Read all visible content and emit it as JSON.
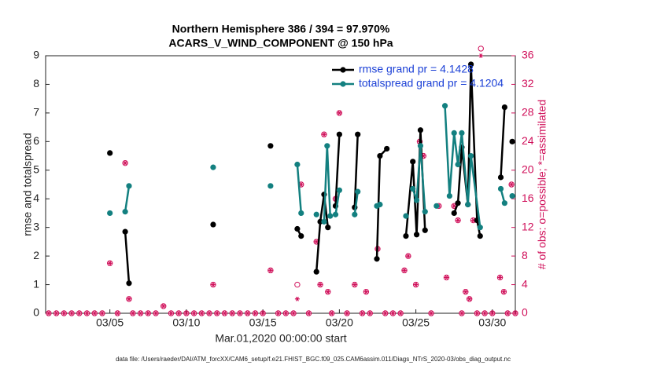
{
  "chart_data": {
    "type": "line",
    "title": "Northern Hemisphere 386 / 394 = 97.970%",
    "subtitle": "ACARS_V_WIND_COMPONENT @ 150 hPa",
    "x_label": "Mar.01,2020 00:00:00 start",
    "y_label": "rmse and totalspread",
    "y2_label": "# of obs: o=possible; *=assimilated",
    "footnote": "data file: /Users/raeder/DAI/ATM_forcXX/CAM6_setup/f.e21.FHIST_BGC.f09_025.CAM6assim.011/Diags_NTrS_2020-03/obs_diag_output.nc",
    "xlim": [
      -0.2,
      30.5
    ],
    "xticks": [
      {
        "value": 4,
        "label": "03/05"
      },
      {
        "value": 9,
        "label": "03/10"
      },
      {
        "value": 14,
        "label": "03/15"
      },
      {
        "value": 19,
        "label": "03/20"
      },
      {
        "value": 24,
        "label": "03/25"
      },
      {
        "value": 29,
        "label": "03/30"
      }
    ],
    "ylim": [
      0,
      9
    ],
    "yticks": [
      0,
      1,
      2,
      3,
      4,
      5,
      6,
      7,
      8,
      9
    ],
    "y2lim": [
      0,
      36
    ],
    "y2ticks": [
      0,
      4,
      8,
      12,
      16,
      20,
      24,
      28,
      32,
      36
    ],
    "y2_color": "#d0105a",
    "grid": false,
    "legend": "upper right",
    "series": [
      {
        "name": "rmse grand pr = 4.1428",
        "color": "#000000",
        "x": [
          4,
          4.5,
          5,
          5.25,
          5.5,
          10.75,
          11,
          14.5,
          15,
          16.25,
          16.5,
          17,
          17.5,
          17.75,
          18,
          18.25,
          18.5,
          18.75,
          19,
          19.5,
          20,
          20.2,
          20.5,
          21.45,
          21.65,
          22.1,
          22.5,
          23.35,
          23.8,
          24.05,
          24.3,
          24.6,
          25,
          26.5,
          26.75,
          27,
          27.4,
          27.6,
          28,
          28.2,
          28.5,
          29.55,
          29.8,
          30,
          30.3
        ],
        "values": [
          5.6,
          null,
          2.85,
          1.05,
          null,
          3.1,
          null,
          5.85,
          null,
          2.95,
          2.7,
          null,
          1.45,
          3.2,
          4.15,
          3.0,
          null,
          3.75,
          6.25,
          null,
          3.7,
          6.25,
          null,
          1.9,
          5.5,
          5.75,
          null,
          2.7,
          5.3,
          2.75,
          6.4,
          2.9,
          null,
          3.5,
          3.85,
          5.8,
          3.8,
          8.7,
          3.25,
          2.7,
          null,
          4.75,
          7.2,
          null,
          6.0
        ]
      },
      {
        "name": "totalspread grand pr = 4.1204",
        "color": "#138080",
        "x": [
          4,
          4.5,
          5,
          5.25,
          5.5,
          10.75,
          11,
          14.5,
          15,
          16.25,
          16.5,
          17,
          17.5,
          17.75,
          18,
          18.2,
          18.4,
          18.6,
          18.75,
          19,
          19.5,
          20,
          20.2,
          20.5,
          21.45,
          21.65,
          22,
          23.35,
          23.6,
          23.8,
          24.05,
          24.3,
          24.6,
          25,
          25.35,
          25.6,
          25.9,
          26.2,
          26.5,
          26.75,
          27,
          27.4,
          27.6,
          28.2,
          28.5,
          29.55,
          29.8,
          30,
          30.3
        ],
        "values": [
          3.5,
          null,
          3.55,
          4.45,
          null,
          5.1,
          null,
          4.45,
          null,
          5.2,
          3.5,
          null,
          3.45,
          null,
          3.2,
          5.85,
          3.4,
          null,
          3.45,
          4.3,
          null,
          3.45,
          4.25,
          null,
          3.75,
          3.8,
          null,
          3.4,
          null,
          4.35,
          3.95,
          5.85,
          3.55,
          null,
          3.75,
          null,
          7.25,
          4.1,
          6.3,
          5.2,
          6.3,
          3.8,
          5.5,
          3.0,
          null,
          4.35,
          3.85,
          null,
          4.1
        ]
      }
    ],
    "obs": {
      "axis": "y2",
      "color": "#d0105a",
      "x": [
        0,
        0.5,
        1,
        1.5,
        2,
        2.5,
        3,
        3.5,
        4,
        4.5,
        5,
        5.25,
        5.5,
        6,
        6.5,
        7,
        7.5,
        8,
        8.5,
        9,
        9.5,
        10,
        10.5,
        10.75,
        11,
        11.5,
        12,
        12.5,
        13,
        13.5,
        14,
        14.5,
        15,
        15.5,
        16,
        16.25,
        16.5,
        17,
        17.5,
        17.75,
        18,
        18.25,
        18.5,
        18.75,
        19,
        19.5,
        20,
        20.5,
        20.75,
        21,
        21.5,
        22,
        22.5,
        23,
        23.25,
        23.5,
        24,
        24.25,
        24.5,
        25,
        25.5,
        26,
        26.5,
        26.75,
        27,
        27.25,
        27.5,
        27.75,
        28,
        28.25,
        28.5,
        29,
        29.5,
        29.75,
        30,
        30.25,
        30.5
      ],
      "possible": [
        0,
        0,
        0,
        0,
        0,
        0,
        0,
        0,
        7,
        0,
        21,
        2,
        0,
        0,
        0,
        0,
        1,
        0,
        0,
        0,
        0,
        0,
        0,
        4,
        0,
        0,
        0,
        0,
        0,
        0,
        0,
        6,
        0,
        0,
        0,
        4,
        18,
        0,
        10,
        4,
        25,
        3,
        0,
        16,
        28,
        0,
        4,
        0,
        3,
        0,
        9,
        0,
        0,
        0,
        6,
        8,
        4,
        24,
        22,
        0,
        15,
        5,
        15,
        13,
        0,
        3,
        2,
        13,
        0,
        37,
        0,
        0,
        5,
        3,
        0,
        18,
        0
      ],
      "assimilated": [
        0,
        0,
        0,
        0,
        0,
        0,
        0,
        0,
        7,
        0,
        21,
        2,
        0,
        0,
        0,
        0,
        1,
        0,
        0,
        0,
        0,
        0,
        0,
        4,
        0,
        0,
        0,
        0,
        0,
        0,
        0,
        6,
        0,
        0,
        0,
        2,
        18,
        0,
        10,
        4,
        25,
        3,
        0,
        16,
        28,
        0,
        4,
        0,
        3,
        0,
        9,
        0,
        0,
        0,
        6,
        8,
        4,
        24,
        22,
        0,
        15,
        5,
        15,
        13,
        0,
        3,
        2,
        13,
        0,
        36,
        0,
        0,
        5,
        3,
        0,
        18,
        0
      ]
    }
  }
}
